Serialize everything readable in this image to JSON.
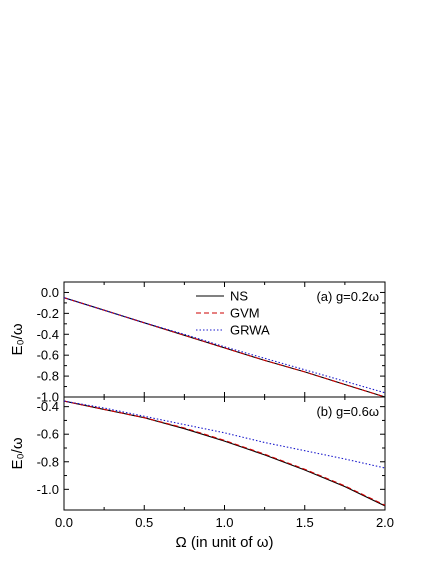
{
  "chart_data": [
    {
      "type": "line",
      "annotation": "(a) g=0.2ω",
      "ylabel": "E₀/ω",
      "xlim": [
        0.0,
        2.0
      ],
      "ylim": [
        -1.0,
        0.1
      ],
      "yticks": [
        "0.0",
        "-0.2",
        "-0.4",
        "-0.6",
        "-0.8",
        "-1.0"
      ],
      "xticks": [],
      "legend_position": "top-center",
      "series": [
        {
          "name": "NS",
          "color": "#000000",
          "dash": "solid",
          "x": [
            0.0,
            0.25,
            0.5,
            0.75,
            1.0,
            1.25,
            1.5,
            1.75,
            2.0
          ],
          "y": [
            -0.05,
            -0.17,
            -0.29,
            -0.41,
            -0.53,
            -0.65,
            -0.76,
            -0.88,
            -1.0
          ]
        },
        {
          "name": "GVM",
          "color": "#cc0000",
          "dash": "dashed",
          "x": [
            0.0,
            0.25,
            0.5,
            0.75,
            1.0,
            1.25,
            1.5,
            1.75,
            2.0
          ],
          "y": [
            -0.05,
            -0.17,
            -0.29,
            -0.41,
            -0.53,
            -0.65,
            -0.76,
            -0.88,
            -1.0
          ]
        },
        {
          "name": "GRWA",
          "color": "#1a1acc",
          "dash": "dotted",
          "x": [
            0.0,
            0.25,
            0.5,
            0.75,
            1.0,
            1.25,
            1.5,
            1.75,
            2.0
          ],
          "y": [
            -0.05,
            -0.17,
            -0.29,
            -0.4,
            -0.52,
            -0.63,
            -0.74,
            -0.85,
            -0.96
          ]
        }
      ]
    },
    {
      "type": "line",
      "annotation": "(b) g=0.6ω",
      "ylabel": "E₀/ω",
      "xlabel": "Ω (in unit of ω)",
      "xlim": [
        0.0,
        2.0
      ],
      "ylim": [
        -1.15,
        -0.33
      ],
      "yticks": [
        "-0.4",
        "-0.6",
        "-0.8",
        "-1.0"
      ],
      "xticks": [
        "0.0",
        "0.5",
        "1.0",
        "1.5",
        "2.0"
      ],
      "series": [
        {
          "name": "NS",
          "color": "#000000",
          "dash": "solid",
          "x": [
            0.0,
            0.25,
            0.5,
            0.75,
            1.0,
            1.25,
            1.5,
            1.75,
            2.0
          ],
          "y": [
            -0.36,
            -0.42,
            -0.48,
            -0.56,
            -0.65,
            -0.75,
            -0.86,
            -0.98,
            -1.12
          ]
        },
        {
          "name": "GVM",
          "color": "#cc0000",
          "dash": "dashed",
          "x": [
            0.0,
            0.25,
            0.5,
            0.75,
            1.0,
            1.25,
            1.5,
            1.75,
            2.0
          ],
          "y": [
            -0.36,
            -0.42,
            -0.48,
            -0.555,
            -0.645,
            -0.745,
            -0.855,
            -0.975,
            -1.115
          ]
        },
        {
          "name": "GRWA",
          "color": "#1a1acc",
          "dash": "dotted",
          "x": [
            0.0,
            0.25,
            0.5,
            0.75,
            1.0,
            1.25,
            1.5,
            1.75,
            2.0
          ],
          "y": [
            -0.36,
            -0.41,
            -0.47,
            -0.53,
            -0.59,
            -0.66,
            -0.72,
            -0.78,
            -0.845
          ]
        }
      ]
    }
  ]
}
